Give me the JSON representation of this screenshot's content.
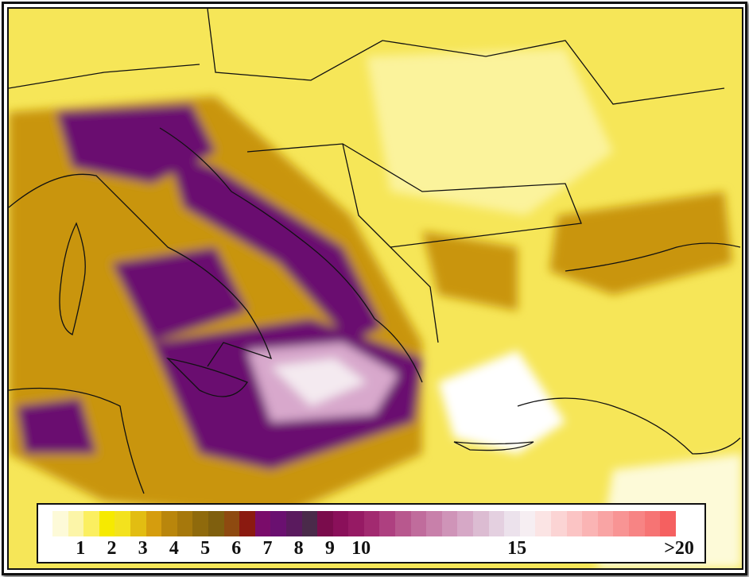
{
  "legend": {
    "labels": [
      {
        "text": "1",
        "value": 1
      },
      {
        "text": "2",
        "value": 2
      },
      {
        "text": "3",
        "value": 3
      },
      {
        "text": "4",
        "value": 4
      },
      {
        "text": "5",
        "value": 5
      },
      {
        "text": "6",
        "value": 6
      },
      {
        "text": "7",
        "value": 7
      },
      {
        "text": "8",
        "value": 8
      },
      {
        "text": "9",
        "value": 9
      },
      {
        "text": "10",
        "value": 10
      },
      {
        "text": "15",
        "value": 15
      },
      {
        "text": ">20",
        "value": 20
      }
    ],
    "colors": [
      "#fdfad8",
      "#fcf5a8",
      "#fbef60",
      "#f6ea00",
      "#f3e21e",
      "#e2bd12",
      "#d59d0e",
      "#b9860c",
      "#a6780c",
      "#8f6a0c",
      "#7f5f0e",
      "#8e4a10",
      "#8b1a10",
      "#7a0c6a",
      "#6a1070",
      "#5a1a5e",
      "#4a2a4a",
      "#7a0c4c",
      "#8a105a",
      "#961a64",
      "#a22a70",
      "#ae4080",
      "#b8588e",
      "#c06c9c",
      "#c880aa",
      "#cf94b8",
      "#d6a8c6",
      "#dcbcd2",
      "#e4d0e0",
      "#ece2ec",
      "#f6eef2",
      "#fbe4e4",
      "#fbd4d4",
      "#fbc4c4",
      "#fab4b4",
      "#f9a4a4",
      "#f89494",
      "#f78484",
      "#f67474",
      "#f56060"
    ]
  }
}
